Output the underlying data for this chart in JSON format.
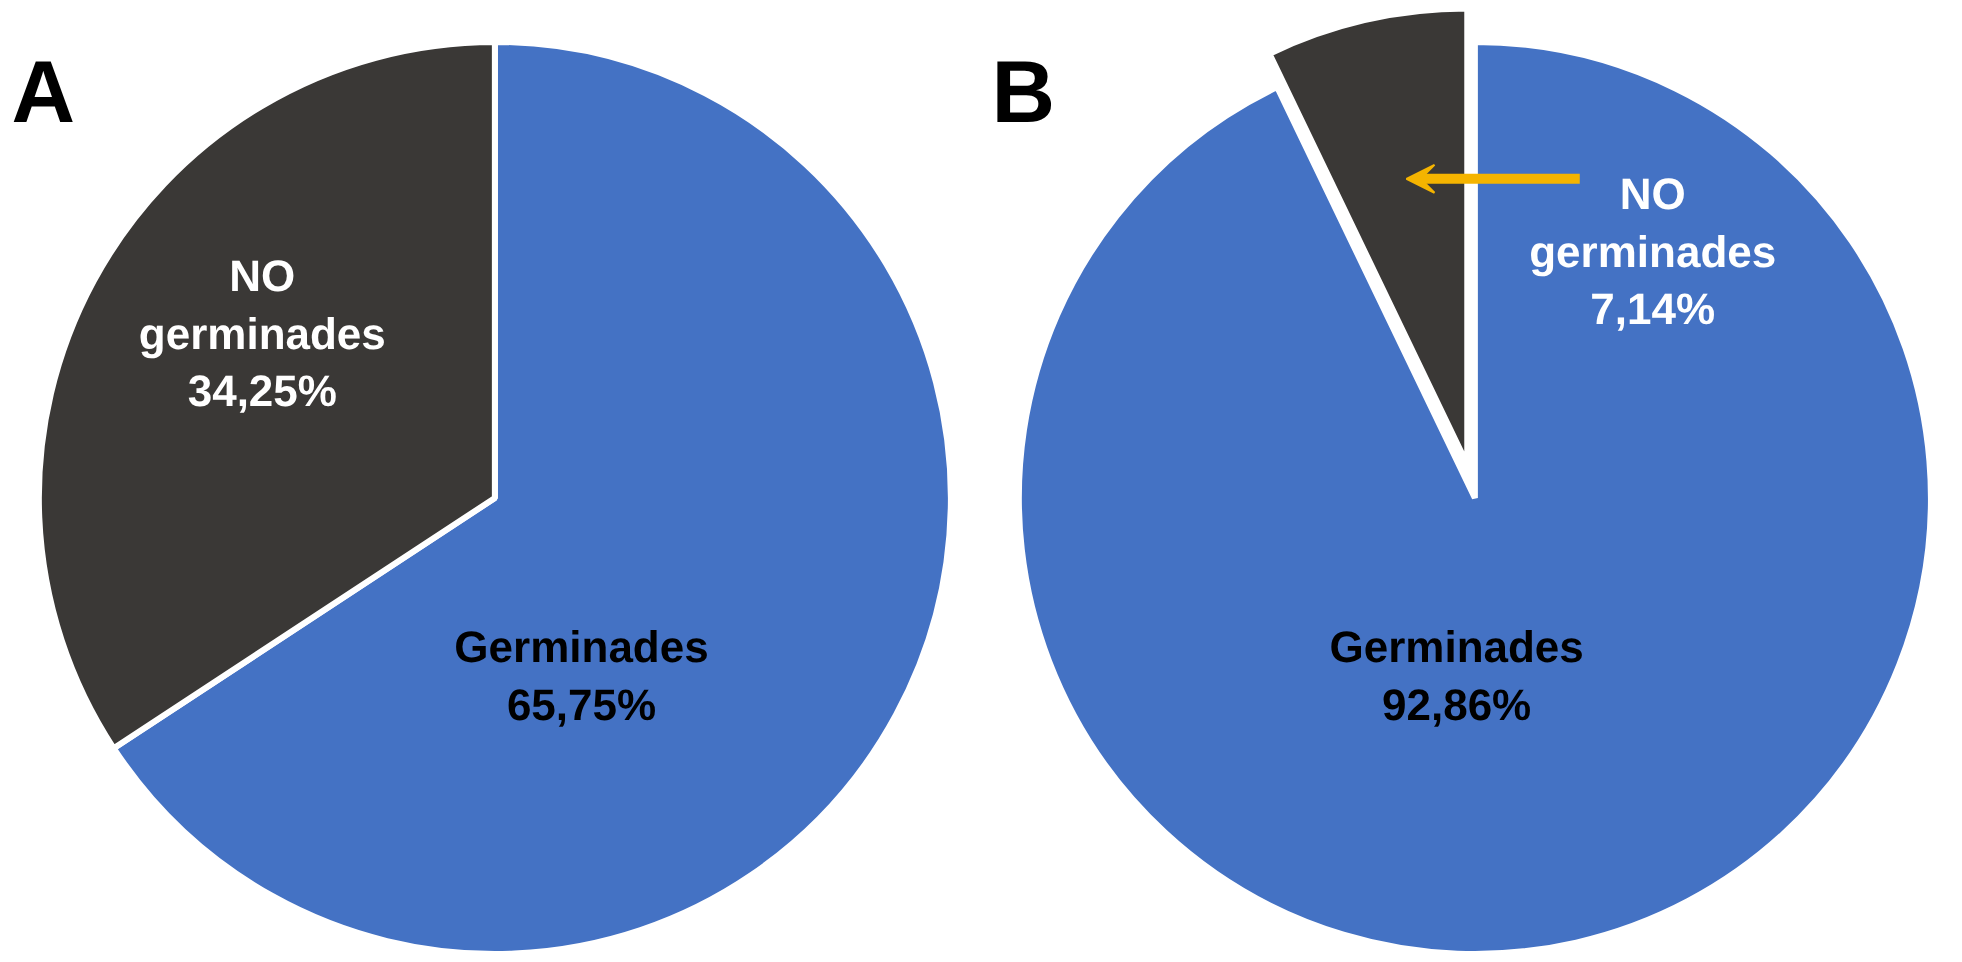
{
  "chart_data": [
    {
      "type": "pie",
      "title": "A",
      "categories": [
        "Germinades",
        "NO germinades"
      ],
      "values": [
        65.75,
        34.25
      ],
      "colors": [
        "#4472c4",
        "#3a3836"
      ],
      "value_labels": [
        "65,75%",
        "34,25%"
      ]
    },
    {
      "type": "pie",
      "title": "B",
      "categories": [
        "Germinades",
        "NO germinades"
      ],
      "values": [
        92.86,
        7.14
      ],
      "colors": [
        "#4472c4",
        "#3a3836"
      ],
      "value_labels": [
        "92,86%",
        "7,14%"
      ]
    }
  ]
}
